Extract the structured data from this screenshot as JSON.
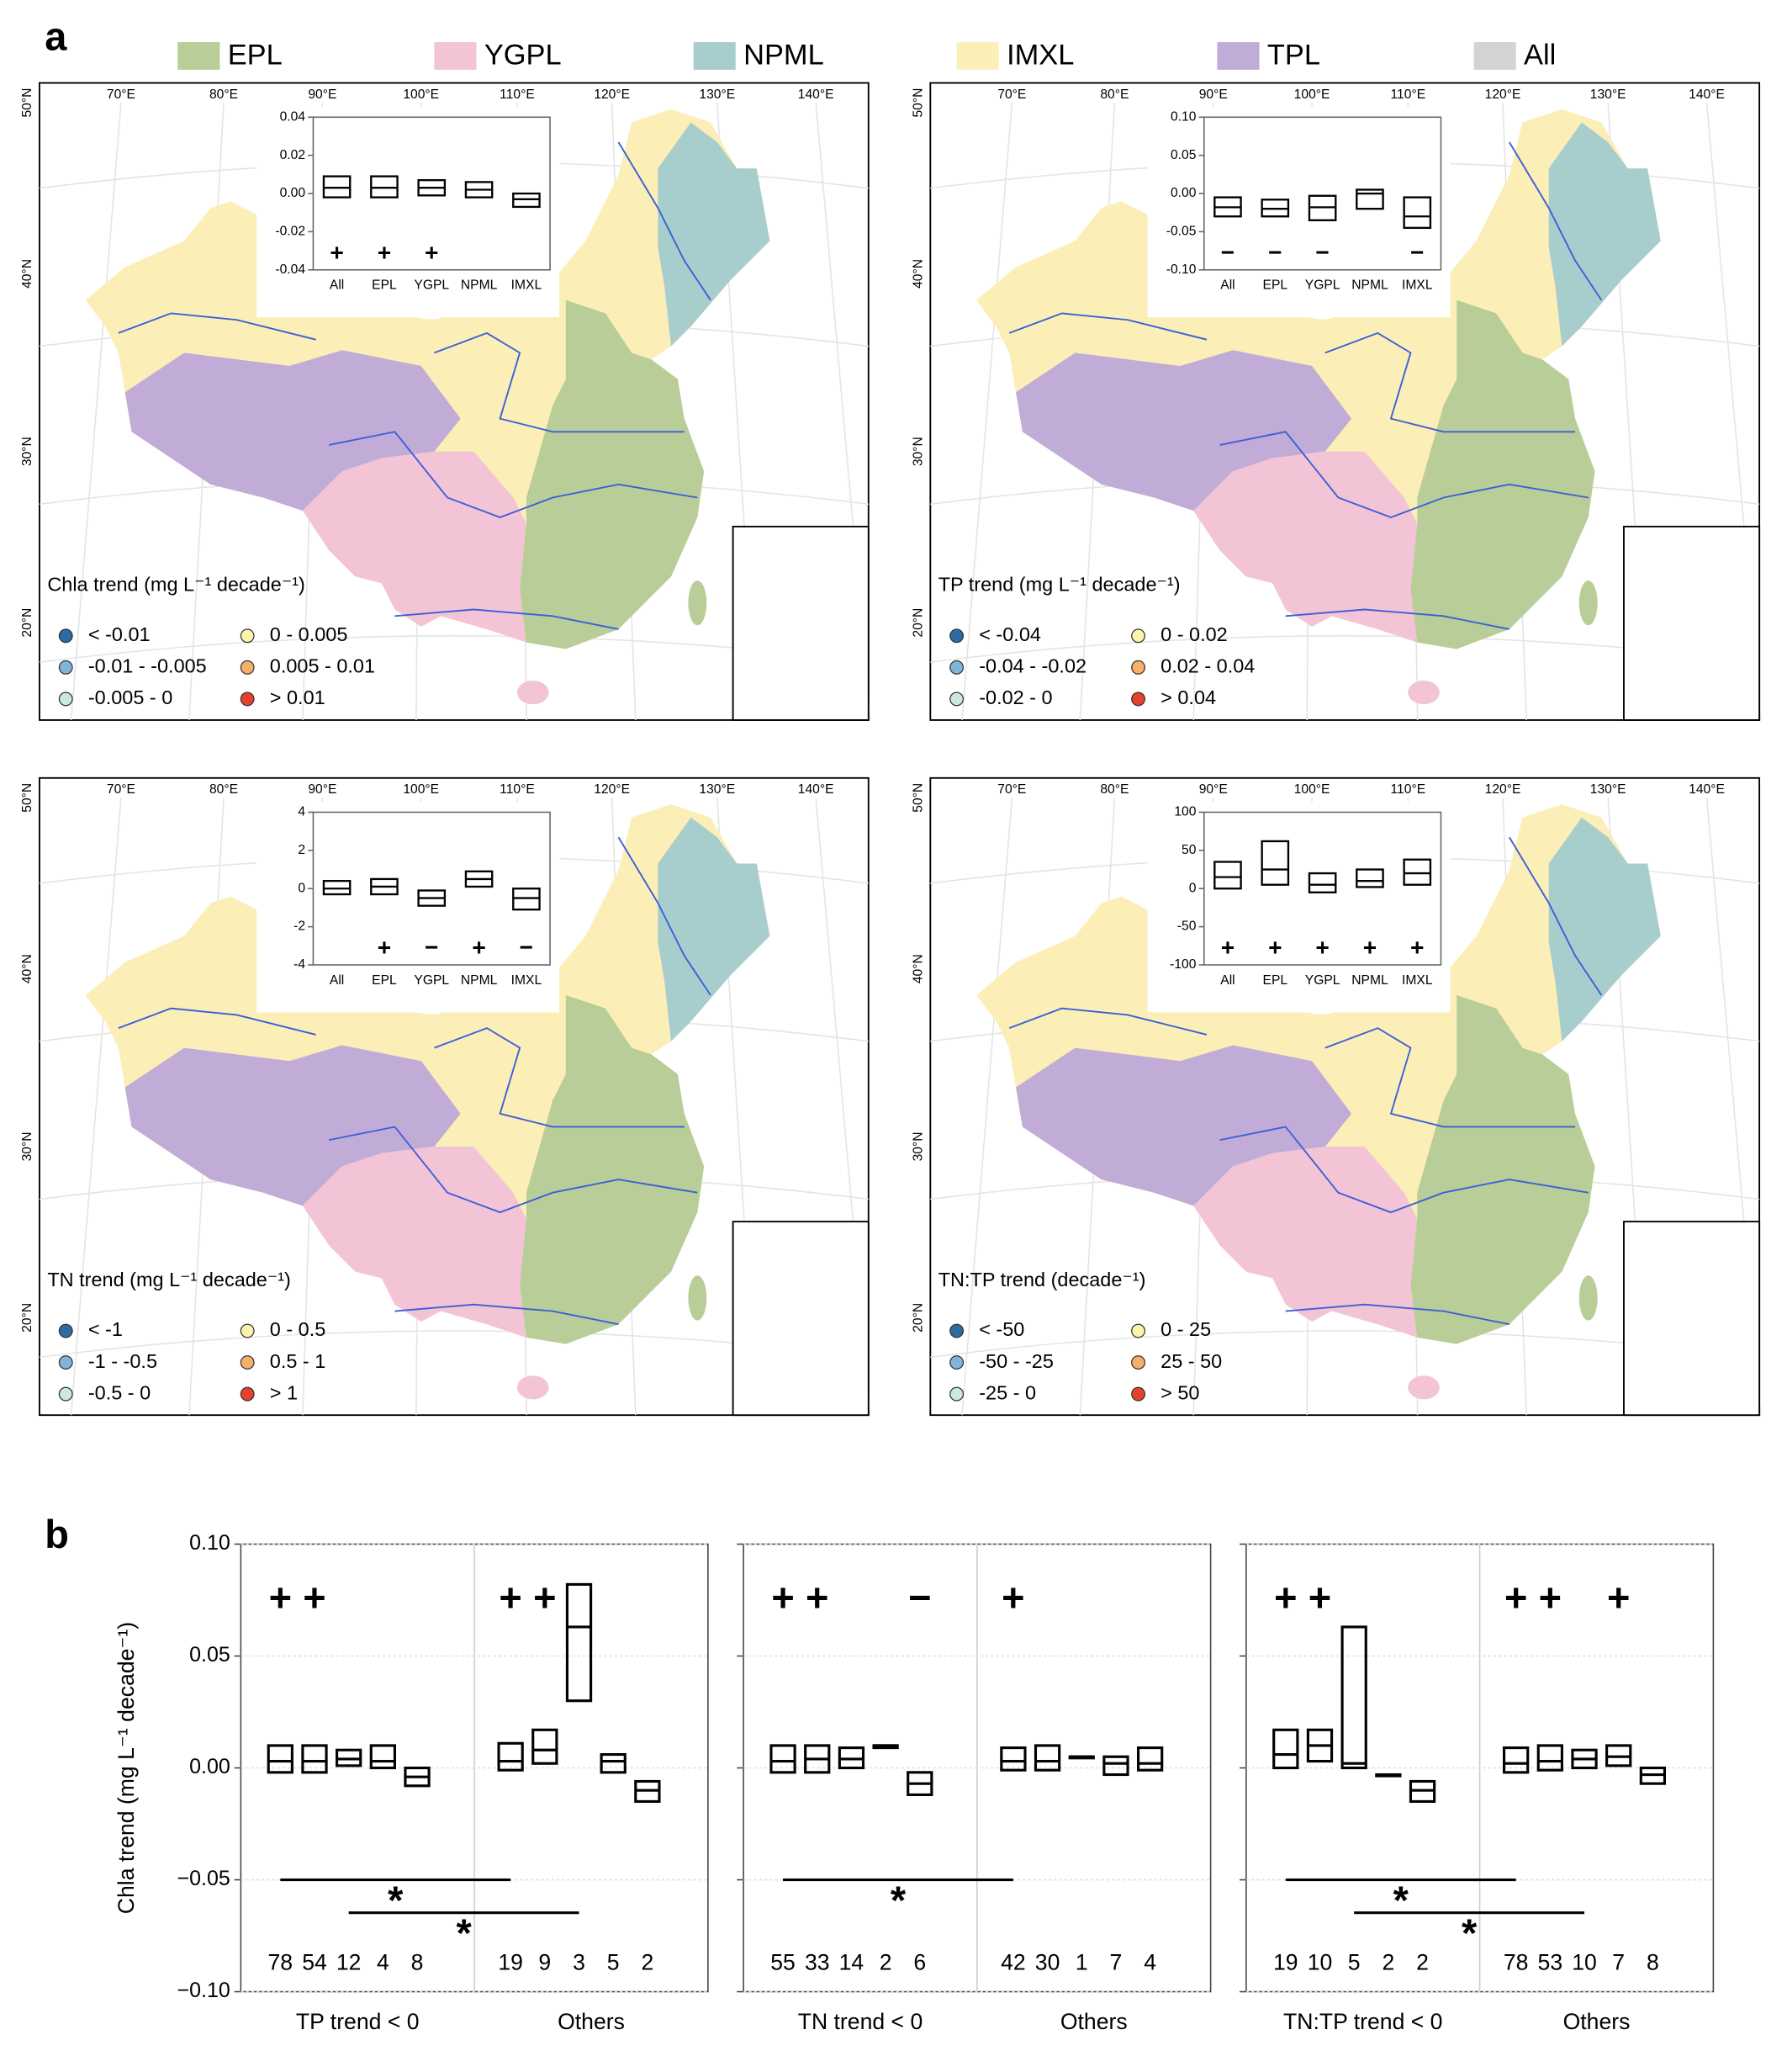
{
  "panel_labels": [
    "a",
    "b"
  ],
  "region_legend": {
    "items": [
      {
        "name": "EPL",
        "color": "#b9cd98"
      },
      {
        "name": "YGPL",
        "color": "#f2c4d6"
      },
      {
        "name": "NPML",
        "color": "#a8cdcd"
      },
      {
        "name": "IMXL",
        "color": "#fbeeb6"
      },
      {
        "name": "TPL",
        "color": "#c1acd8"
      },
      {
        "name": "All",
        "color": "#d3d3d3"
      }
    ]
  },
  "lon_labels": [
    "70°E",
    "80°E",
    "90°E",
    "100°E",
    "110°E",
    "120°E",
    "130°E",
    "140°E"
  ],
  "lat_labels": [
    "50°N",
    "40°N",
    "30°N",
    "20°N"
  ],
  "inset_categories": [
    "All",
    "EPL",
    "YGPL",
    "NPML",
    "IMXL"
  ],
  "maps": [
    {
      "legend_title": "Chla trend (mg L⁻¹ decade⁻¹)",
      "classes": [
        {
          "label": "< -0.01",
          "color": "#2d6ca2"
        },
        {
          "label": "-0.01 - -0.005",
          "color": "#82b3d8"
        },
        {
          "label": "-0.005 - 0",
          "color": "#cbe8e2"
        },
        {
          "label": "0 - 0.005",
          "color": "#fbf3a9"
        },
        {
          "label": "0.005 - 0.01",
          "color": "#f5b06a"
        },
        {
          "label": "> 0.01",
          "color": "#e6412c"
        }
      ],
      "inset": {
        "ylim": [
          -0.04,
          0.04
        ],
        "yticks": [
          -0.04,
          -0.02,
          {
            "value": 0,
            "label": "0.00"
          },
          0.02,
          0.04
        ],
        "boxes": [
          {
            "q1": -0.002,
            "median": 0.003,
            "q3": 0.009
          },
          {
            "q1": -0.002,
            "median": 0.003,
            "q3": 0.009
          },
          {
            "q1": -0.001,
            "median": 0.003,
            "q3": 0.007
          },
          {
            "q1": -0.002,
            "median": 0.002,
            "q3": 0.006
          },
          {
            "q1": -0.007,
            "median": -0.003,
            "q3": 0
          }
        ],
        "signs": [
          "+",
          "+",
          "+",
          null,
          null
        ]
      }
    },
    {
      "legend_title": "TP trend (mg L⁻¹ decade⁻¹)",
      "classes": [
        {
          "label": "< -0.04",
          "color": "#2d6ca2"
        },
        {
          "label": "-0.04 - -0.02",
          "color": "#82b3d8"
        },
        {
          "label": "-0.02 - 0",
          "color": "#cbe8e2"
        },
        {
          "label": "0 - 0.02",
          "color": "#fbf3a9"
        },
        {
          "label": "0.02 - 0.04",
          "color": "#f5b06a"
        },
        {
          "label": "> 0.04",
          "color": "#e6412c"
        }
      ],
      "inset": {
        "ylim": [
          -0.1,
          0.1
        ],
        "yticks": [
          {
            "value": -0.1,
            "label": "-0.10"
          },
          -0.05,
          {
            "value": 0,
            "label": "0.00"
          },
          0.05,
          {
            "value": 0.1,
            "label": "0.10"
          }
        ],
        "boxes": [
          {
            "q1": -0.03,
            "median": -0.018,
            "q3": -0.005
          },
          {
            "q1": -0.03,
            "median": -0.02,
            "q3": -0.008
          },
          {
            "q1": -0.035,
            "median": -0.018,
            "q3": -0.003
          },
          {
            "q1": -0.02,
            "median": 0,
            "q3": 0.005
          },
          {
            "q1": -0.045,
            "median": -0.03,
            "q3": -0.005
          }
        ],
        "signs": [
          "−",
          "−",
          "−",
          null,
          "−"
        ]
      }
    },
    {
      "legend_title": "TN trend (mg L⁻¹ decade⁻¹)",
      "classes": [
        {
          "label": "< -1",
          "color": "#2d6ca2"
        },
        {
          "label": "-1 - -0.5",
          "color": "#82b3d8"
        },
        {
          "label": "-0.5 - 0",
          "color": "#cbe8e2"
        },
        {
          "label": "0 - 0.5",
          "color": "#fbf3a9"
        },
        {
          "label": "0.5 - 1",
          "color": "#f5b06a"
        },
        {
          "label": "> 1",
          "color": "#e6412c"
        }
      ],
      "inset": {
        "ylim": [
          -4,
          4
        ],
        "yticks": [
          -4,
          -2,
          0,
          2,
          4
        ],
        "boxes": [
          {
            "q1": -0.3,
            "median": 0,
            "q3": 0.4
          },
          {
            "q1": -0.3,
            "median": 0.1,
            "q3": 0.5
          },
          {
            "q1": -0.9,
            "median": -0.5,
            "q3": -0.1
          },
          {
            "q1": 0.1,
            "median": 0.5,
            "q3": 0.9
          },
          {
            "q1": -1.1,
            "median": -0.5,
            "q3": 0
          }
        ],
        "signs": [
          null,
          "+",
          "−",
          "+",
          "−"
        ]
      }
    },
    {
      "legend_title": "TN:TP trend (decade⁻¹)",
      "classes": [
        {
          "label": "< -50",
          "color": "#2d6ca2"
        },
        {
          "label": "-50 - -25",
          "color": "#82b3d8"
        },
        {
          "label": "-25 - 0",
          "color": "#cbe8e2"
        },
        {
          "label": "0 - 25",
          "color": "#fbf3a9"
        },
        {
          "label": "25 - 50",
          "color": "#f5b06a"
        },
        {
          "label": "> 50",
          "color": "#e6412c"
        }
      ],
      "inset": {
        "ylim": [
          -100,
          100
        ],
        "yticks": [
          -100,
          -50,
          0,
          50,
          100
        ],
        "boxes": [
          {
            "q1": 0,
            "median": 15,
            "q3": 35
          },
          {
            "q1": 5,
            "median": 25,
            "q3": 62
          },
          {
            "q1": -5,
            "median": 5,
            "q3": 20
          },
          {
            "q1": 2,
            "median": 10,
            "q3": 25
          },
          {
            "q1": 5,
            "median": 20,
            "q3": 38
          }
        ],
        "signs": [
          "+",
          "+",
          "+",
          "+",
          "+"
        ]
      }
    }
  ],
  "panel_b": {
    "ylabel": "Chla trend (mg L⁻¹ decade⁻¹)",
    "ylim": [
      -0.1,
      0.1
    ],
    "yticks": [
      {
        "value": -0.1,
        "label": "−0.10"
      },
      {
        "value": -0.05,
        "label": "−0.05"
      },
      {
        "value": 0,
        "label": "0.00"
      },
      0.05,
      {
        "value": 0.1,
        "label": "0.10"
      }
    ],
    "charts": [
      {
        "groups": [
          {
            "label": "TP trend < 0",
            "boxes": [
              {
                "q1": -0.002,
                "median": 0.003,
                "q3": 0.01
              },
              {
                "q1": -0.002,
                "median": 0.003,
                "q3": 0.01
              },
              {
                "q1": 0.001,
                "median": 0.004,
                "q3": 0.008
              },
              {
                "q1": 0,
                "median": 0.003,
                "q3": 0.01
              },
              {
                "q1": -0.008,
                "median": -0.004,
                "q3": 0
              }
            ],
            "counts": [
              78,
              54,
              12,
              4,
              8
            ],
            "signs": [
              "+",
              "+",
              null,
              null,
              null
            ]
          },
          {
            "label": "Others",
            "boxes": [
              {
                "q1": -0.001,
                "median": 0.003,
                "q3": 0.011
              },
              {
                "q1": 0.002,
                "median": 0.008,
                "q3": 0.017
              },
              {
                "q1": 0.03,
                "median": 0.063,
                "q3": 0.082
              },
              {
                "q1": -0.002,
                "median": 0.003,
                "q3": 0.006
              },
              {
                "q1": -0.015,
                "median": -0.01,
                "q3": -0.006
              }
            ],
            "counts": [
              19,
              9,
              3,
              5,
              2
            ],
            "signs": [
              "+",
              "+",
              null,
              null,
              null
            ]
          }
        ],
        "significance": [
          {
            "label": "*"
          },
          {
            "label": "*"
          }
        ]
      },
      {
        "groups": [
          {
            "label": "TN trend < 0",
            "boxes": [
              {
                "q1": -0.002,
                "median": 0.003,
                "q3": 0.01
              },
              {
                "q1": -0.002,
                "median": 0.004,
                "q3": 0.01
              },
              {
                "q1": 0,
                "median": 0.004,
                "q3": 0.009
              },
              {
                "q1": 0.009,
                "median": 0.01,
                "q3": 0.01
              },
              {
                "q1": -0.012,
                "median": -0.007,
                "q3": -0.002
              }
            ],
            "counts": [
              55,
              33,
              14,
              2,
              6
            ],
            "signs": [
              "+",
              "+",
              null,
              null,
              "−"
            ]
          },
          {
            "label": "Others",
            "boxes": [
              {
                "q1": -0.001,
                "median": 0.003,
                "q3": 0.009
              },
              {
                "q1": -0.001,
                "median": 0.003,
                "q3": 0.01
              },
              {
                "q1": 0.005,
                "median": 0.005,
                "q3": 0.005
              },
              {
                "q1": -0.003,
                "median": 0.002,
                "q3": 0.005
              },
              {
                "q1": -0.001,
                "median": 0.002,
                "q3": 0.009
              }
            ],
            "counts": [
              42,
              30,
              1,
              7,
              4
            ],
            "signs": [
              "+",
              null,
              null,
              null,
              null
            ]
          }
        ],
        "significance": [
          {
            "label": "*"
          }
        ]
      },
      {
        "groups": [
          {
            "label": "TN:TP trend < 0",
            "boxes": [
              {
                "q1": 0,
                "median": 0.006,
                "q3": 0.017
              },
              {
                "q1": 0.003,
                "median": 0.01,
                "q3": 0.017
              },
              {
                "q1": 0,
                "median": 0.002,
                "q3": 0.063
              },
              {
                "q1": -0.003,
                "median": -0.003,
                "q3": -0.003
              },
              {
                "q1": -0.015,
                "median": -0.01,
                "q3": -0.006
              }
            ],
            "counts": [
              19,
              10,
              5,
              2,
              2
            ],
            "signs": [
              "+",
              "+",
              null,
              null,
              null
            ]
          },
          {
            "label": "Others",
            "boxes": [
              {
                "q1": -0.002,
                "median": 0.002,
                "q3": 0.009
              },
              {
                "q1": -0.001,
                "median": 0.003,
                "q3": 0.01
              },
              {
                "q1": 0,
                "median": 0.004,
                "q3": 0.008
              },
              {
                "q1": 0.001,
                "median": 0.005,
                "q3": 0.01
              },
              {
                "q1": -0.007,
                "median": -0.003,
                "q3": 0
              }
            ],
            "counts": [
              78,
              53,
              10,
              7,
              8
            ],
            "signs": [
              "+",
              "+",
              null,
              "+",
              null
            ]
          }
        ],
        "significance": [
          {
            "label": "*"
          },
          {
            "label": "*"
          }
        ]
      }
    ]
  }
}
